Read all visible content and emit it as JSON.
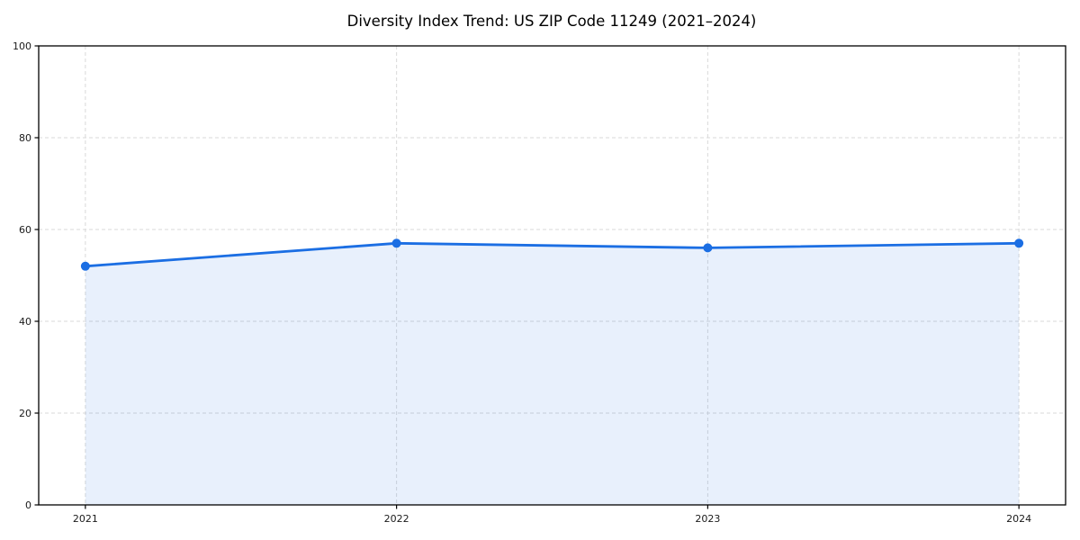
{
  "figure": {
    "title": "Diversity Index Trend: US ZIP Code 11249 (2021–2024)",
    "background_color": "#ffffff"
  },
  "chart_data": {
    "type": "area",
    "title": "Diversity Index Trend: US ZIP Code 11249 (2021–2024)",
    "xlabel": "",
    "ylabel": "",
    "x": [
      2021,
      2022,
      2023,
      2024
    ],
    "x_tick_labels": [
      "2021",
      "2022",
      "2023",
      "2024"
    ],
    "series": [
      {
        "name": "Diversity Index",
        "values": [
          52,
          57,
          56,
          57
        ]
      }
    ],
    "ylim": [
      0,
      100
    ],
    "yticks": [
      0,
      20,
      40,
      60,
      80,
      100
    ],
    "y_tick_labels": [
      "0",
      "20",
      "40",
      "60",
      "80",
      "100"
    ],
    "x_margin": 0.15,
    "grid": {
      "visible": true,
      "style": "dashed",
      "color": "#d9d9d9"
    },
    "legend": {
      "visible": false
    },
    "marker": {
      "shape": "circle",
      "radius": 5
    },
    "colors": {
      "line": "#1b6ee3",
      "marker": "#1b6ee3",
      "fill": "rgba(27,110,227,0.10)",
      "spine": "#000000",
      "tick_text": "#1a1a1a",
      "title_text": "#000000",
      "background": "#ffffff"
    }
  }
}
